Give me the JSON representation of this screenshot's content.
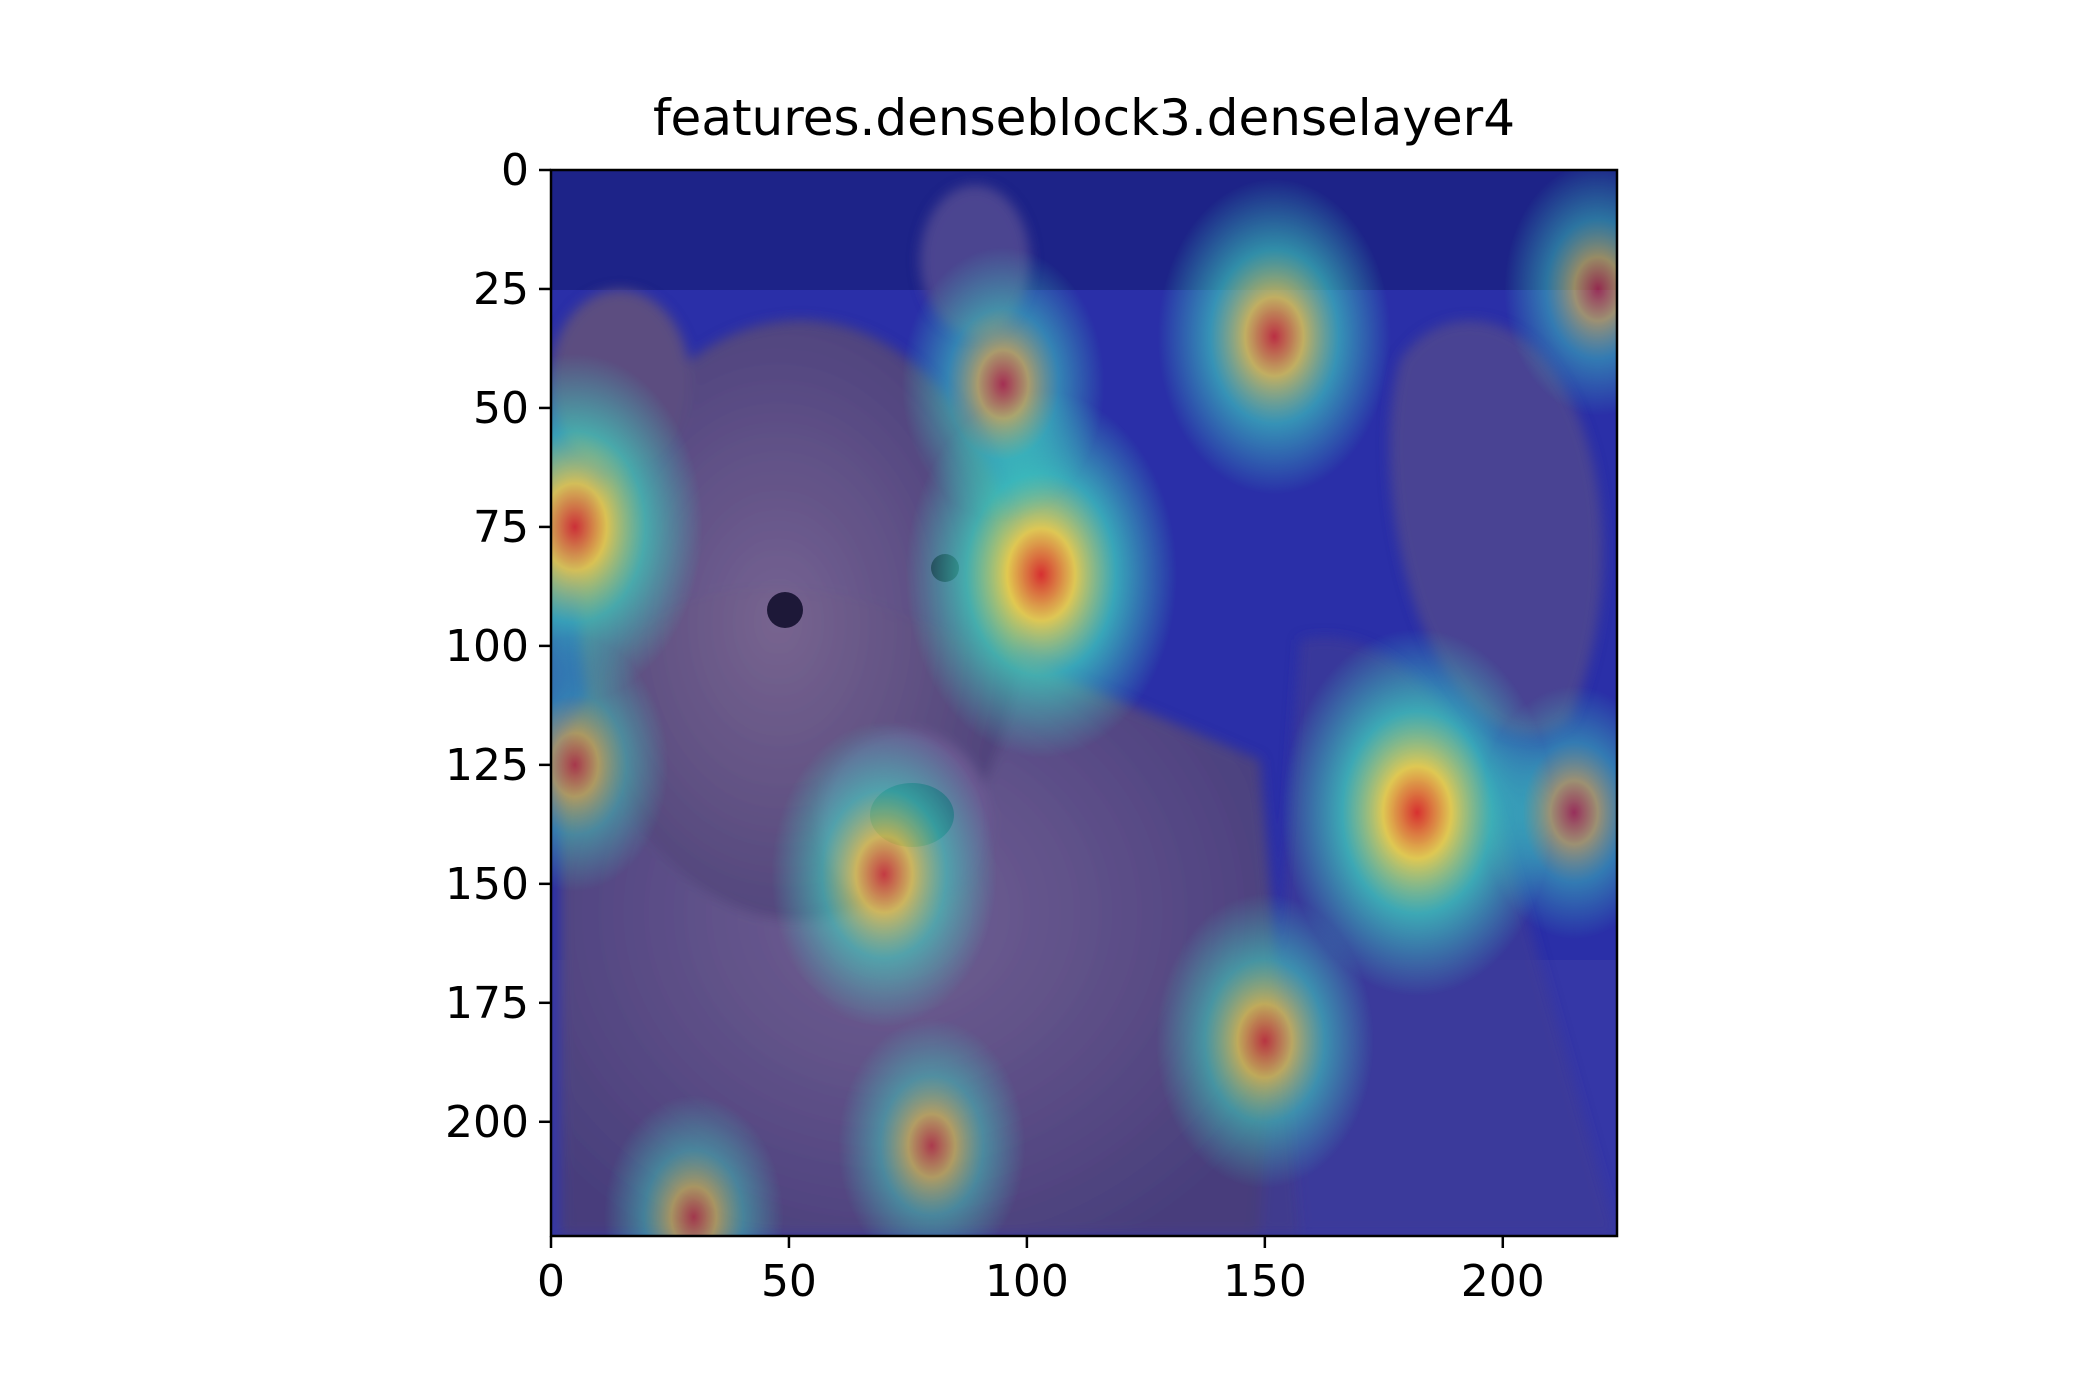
{
  "figure": {
    "title": "features.denseblock3.denselayer4",
    "image_description_semantic": "bear-heatmap-overlay",
    "image_extent": [
      0,
      224,
      224,
      0
    ],
    "x_ticks": [
      0,
      50,
      100,
      150,
      200
    ],
    "y_ticks": [
      0,
      25,
      50,
      75,
      100,
      125,
      150,
      175,
      200
    ],
    "colormap": "jet",
    "colors": {
      "base_photo": "#6b5a86",
      "low_activation": "#2a2fc0",
      "mid_activation": "#3fd9c0",
      "high_activation": "#f2d84b",
      "peak_activation": "#e0302a"
    },
    "hotspots": [
      {
        "x": 103,
        "y": 85,
        "strength": 1.0
      },
      {
        "x": 182,
        "y": 135,
        "strength": 1.0
      },
      {
        "x": 5,
        "y": 75,
        "strength": 0.9
      },
      {
        "x": 152,
        "y": 35,
        "strength": 0.75
      },
      {
        "x": 150,
        "y": 183,
        "strength": 0.65
      },
      {
        "x": 70,
        "y": 148,
        "strength": 0.7
      },
      {
        "x": 95,
        "y": 45,
        "strength": 0.55
      },
      {
        "x": 215,
        "y": 135,
        "strength": 0.45
      },
      {
        "x": 220,
        "y": 25,
        "strength": 0.45
      },
      {
        "x": 80,
        "y": 205,
        "strength": 0.45
      },
      {
        "x": 5,
        "y": 125,
        "strength": 0.45
      },
      {
        "x": 30,
        "y": 220,
        "strength": 0.4
      }
    ]
  }
}
